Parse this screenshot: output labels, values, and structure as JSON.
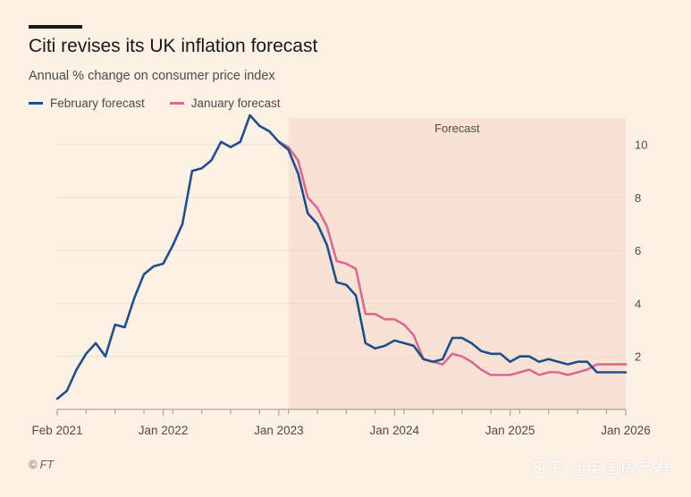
{
  "header": {
    "title": "Citi revises its UK inflation forecast",
    "subtitle": "Annual % change on consumer price index"
  },
  "footer": {
    "source": "© FT",
    "watermark": "知乎 @英国房产君"
  },
  "colors": {
    "background": "#fdf1e6",
    "forecast_shade": "#f9e2d4",
    "february": "#1f4e8c",
    "january": "#d96a93",
    "grid": "#e9ddd2",
    "axis_text": "#4f4a47"
  },
  "chart_data": {
    "type": "line",
    "title": "Citi revises its UK inflation forecast",
    "subtitle": "Annual % change on consumer price index",
    "xlabel": "",
    "ylabel": "",
    "x_range": [
      "2021-02",
      "2026-01"
    ],
    "ylim": [
      0,
      11
    ],
    "y_ticks": [
      2,
      4,
      6,
      8,
      10
    ],
    "x_tick_labels": [
      {
        "date": "2021-02",
        "label": "Feb 2021"
      },
      {
        "date": "2022-01",
        "label": "Jan 2022"
      },
      {
        "date": "2023-01",
        "label": "Jan 2023"
      },
      {
        "date": "2024-01",
        "label": "Jan 2024"
      },
      {
        "date": "2025-01",
        "label": "Jan 2025"
      },
      {
        "date": "2026-01",
        "label": "Jan 2026"
      }
    ],
    "grid": true,
    "legend_position": "top-left",
    "forecast_region": {
      "start": "2023-02",
      "end": "2026-01",
      "label": "Forecast"
    },
    "series": [
      {
        "name": "February forecast",
        "color": "#1f4e8c",
        "x": [
          "2021-02",
          "2021-03",
          "2021-04",
          "2021-05",
          "2021-06",
          "2021-07",
          "2021-08",
          "2021-09",
          "2021-10",
          "2021-11",
          "2021-12",
          "2022-01",
          "2022-02",
          "2022-03",
          "2022-04",
          "2022-05",
          "2022-06",
          "2022-07",
          "2022-08",
          "2022-09",
          "2022-10",
          "2022-11",
          "2022-12",
          "2023-01",
          "2023-02",
          "2023-03",
          "2023-04",
          "2023-05",
          "2023-06",
          "2023-07",
          "2023-08",
          "2023-09",
          "2023-10",
          "2023-11",
          "2023-12",
          "2024-01",
          "2024-02",
          "2024-03",
          "2024-04",
          "2024-05",
          "2024-06",
          "2024-07",
          "2024-08",
          "2024-09",
          "2024-10",
          "2024-11",
          "2024-12",
          "2025-01",
          "2025-02",
          "2025-03",
          "2025-04",
          "2025-05",
          "2025-06",
          "2025-07",
          "2025-08",
          "2025-09",
          "2025-10",
          "2025-11",
          "2025-12",
          "2026-01"
        ],
        "values": [
          0.4,
          0.7,
          1.5,
          2.1,
          2.5,
          2.0,
          3.2,
          3.1,
          4.2,
          5.1,
          5.4,
          5.5,
          6.2,
          7.0,
          9.0,
          9.1,
          9.4,
          10.1,
          9.9,
          10.1,
          11.1,
          10.7,
          10.5,
          10.1,
          9.8,
          8.9,
          7.4,
          7.0,
          6.2,
          4.8,
          4.7,
          4.3,
          2.5,
          2.3,
          2.4,
          2.6,
          2.5,
          2.4,
          1.9,
          1.8,
          1.9,
          2.7,
          2.7,
          2.5,
          2.2,
          2.1,
          2.1,
          1.8,
          2.0,
          2.0,
          1.8,
          1.9,
          1.8,
          1.7,
          1.8,
          1.8,
          1.4,
          1.4,
          1.4,
          1.4
        ]
      },
      {
        "name": "January forecast",
        "color": "#d96a93",
        "x": [
          "2023-01",
          "2023-02",
          "2023-03",
          "2023-04",
          "2023-05",
          "2023-06",
          "2023-07",
          "2023-08",
          "2023-09",
          "2023-10",
          "2023-11",
          "2023-12",
          "2024-01",
          "2024-02",
          "2024-03",
          "2024-04",
          "2024-05",
          "2024-06",
          "2024-07",
          "2024-08",
          "2024-09",
          "2024-10",
          "2024-11",
          "2024-12",
          "2025-01",
          "2025-02",
          "2025-03",
          "2025-04",
          "2025-05",
          "2025-06",
          "2025-07",
          "2025-08",
          "2025-09",
          "2025-10",
          "2025-11",
          "2025-12",
          "2026-01"
        ],
        "values": [
          10.1,
          9.9,
          9.4,
          8.0,
          7.6,
          6.9,
          5.6,
          5.5,
          5.3,
          3.6,
          3.6,
          3.4,
          3.4,
          3.2,
          2.8,
          1.9,
          1.8,
          1.7,
          2.1,
          2.0,
          1.8,
          1.5,
          1.3,
          1.3,
          1.3,
          1.4,
          1.5,
          1.3,
          1.4,
          1.4,
          1.3,
          1.4,
          1.5,
          1.7,
          1.7,
          1.7,
          1.7
        ]
      }
    ]
  }
}
